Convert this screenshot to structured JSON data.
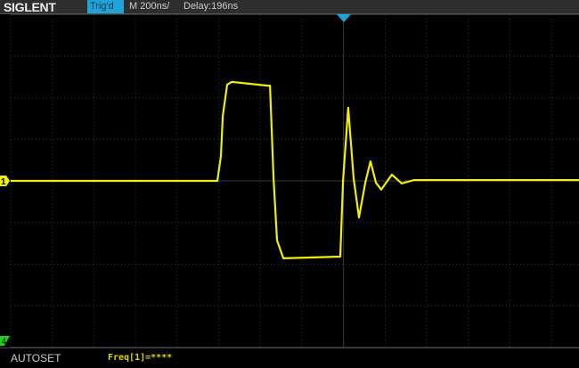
{
  "header": {
    "brand": "SIGLENT",
    "trigger_status": "Trig'd",
    "timebase": "M 200ns/",
    "delay": "Delay:196ns"
  },
  "footer": {
    "autoset_label": "AUTOSET",
    "measurement": "Freq[1]=****"
  },
  "markers": {
    "channel1": "1",
    "channel4": "4"
  },
  "colors": {
    "trace": "#f0f000",
    "trigger_marker": "#1fa3d8",
    "ch4": "#22cc22",
    "grid": "#3a3a3a"
  },
  "chart_data": {
    "type": "line",
    "x_unit": "ns",
    "y_unit": "div",
    "timebase": "200ns/div",
    "xlim": [
      -1602,
      1131
    ],
    "ylim": [
      -4,
      4
    ],
    "grid": true,
    "series": [
      {
        "x": [
          -1602,
          -608,
          -591,
          -582,
          -561,
          -539,
          -368,
          -355,
          -338,
          -321,
          -291,
          -17,
          -4,
          21,
          47,
          73,
          103,
          128,
          154,
          180,
          231,
          278,
          338,
          1131
        ],
        "y": [
          0,
          0,
          0.6,
          1.56,
          2.31,
          2.38,
          2.29,
          2.29,
          0.06,
          -1.43,
          -1.86,
          -1.82,
          0,
          1.76,
          0.06,
          -0.88,
          -0.04,
          0.47,
          -0.04,
          -0.21,
          0.15,
          -0.06,
          0.02,
          0.02
        ]
      }
    ]
  }
}
